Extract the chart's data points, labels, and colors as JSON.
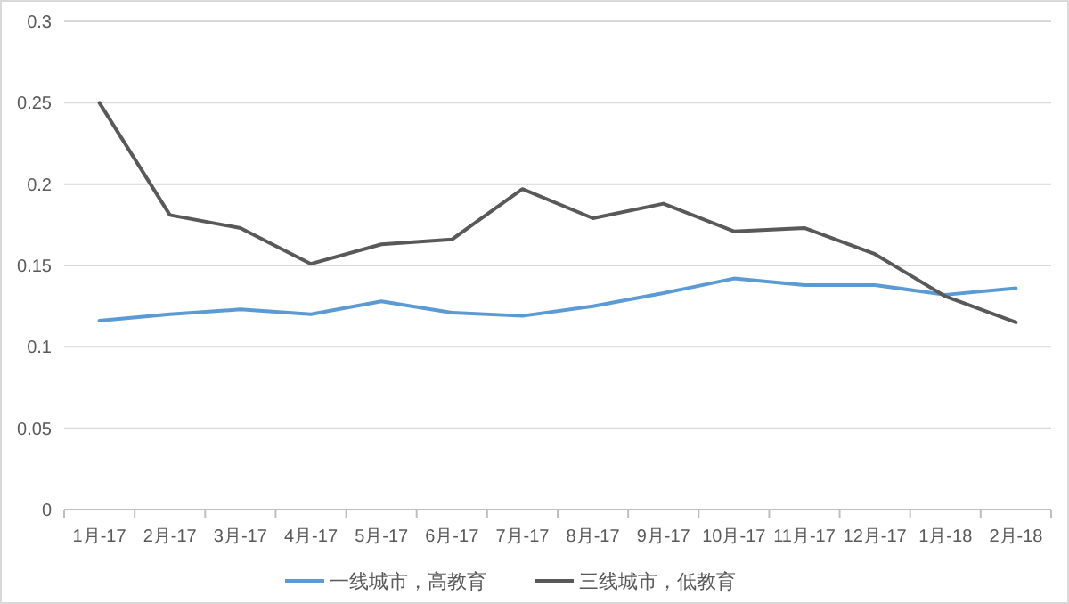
{
  "chart_data": {
    "type": "line",
    "categories": [
      "1月-17",
      "2月-17",
      "3月-17",
      "4月-17",
      "5月-17",
      "6月-17",
      "7月-17",
      "8月-17",
      "9月-17",
      "10月-17",
      "11月-17",
      "12月-17",
      "1月-18",
      "2月-18"
    ],
    "series": [
      {
        "name": "一线城市，高教育",
        "color": "#5b9bd5",
        "values": [
          0.116,
          0.12,
          0.123,
          0.12,
          0.128,
          0.121,
          0.119,
          0.125,
          0.133,
          0.142,
          0.138,
          0.138,
          0.132,
          0.136
        ]
      },
      {
        "name": "三线城市，低教育",
        "color": "#595959",
        "values": [
          0.25,
          0.181,
          0.173,
          0.151,
          0.163,
          0.166,
          0.197,
          0.179,
          0.188,
          0.171,
          0.173,
          0.157,
          0.131,
          0.115
        ]
      }
    ],
    "ylim": [
      0,
      0.3
    ],
    "yticks": [
      0,
      0.05,
      0.1,
      0.15,
      0.2,
      0.25,
      0.3
    ],
    "grid": "y",
    "legend": "bottom",
    "marker": "none",
    "line_style": "solid"
  }
}
